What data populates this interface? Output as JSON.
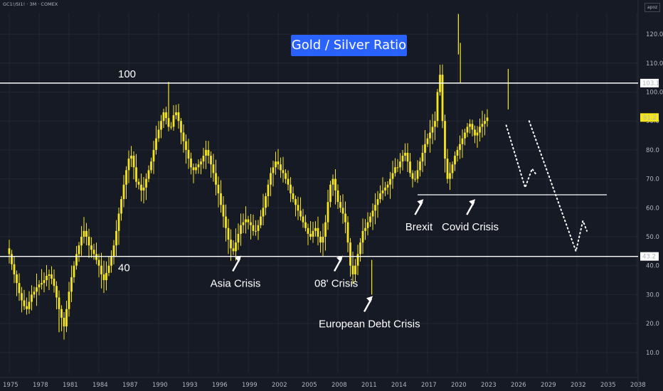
{
  "header": {
    "symbol": "GC1!/SI1! · 3M · COMEX",
    "corner_label": "apoz"
  },
  "colors": {
    "background": "#161a25",
    "candle": "#f5e51c",
    "level_line": "#ffffff",
    "price_label": "#f5e51c",
    "title_bg": "#2962ff",
    "grid": "#232734"
  },
  "chart_data": {
    "type": "candlestick",
    "title": "Gold / Silver Ratio",
    "x_ticks": [
      "1975",
      "1978",
      "1981",
      "1984",
      "1987",
      "1990",
      "1993",
      "1996",
      "1999",
      "2002",
      "2005",
      "2008",
      "2011",
      "2014",
      "2017",
      "2020",
      "2023",
      "2026",
      "2029",
      "2032",
      "2035",
      "2038"
    ],
    "y_ticks": [
      10,
      20,
      30,
      40,
      50,
      60,
      70,
      80,
      90,
      100,
      110,
      120
    ],
    "y_tick_labels": [
      "10.0",
      "20.0",
      "30.0",
      "40.0",
      "50.0",
      "60.0",
      "70.0",
      "80.0",
      "90.0",
      "100.0",
      "110.0",
      "120.0"
    ],
    "xlim": [
      1975,
      2038
    ],
    "ylim": [
      0,
      126
    ],
    "levels": [
      {
        "value": 103.1,
        "label": "100",
        "price_label": "103.1"
      },
      {
        "value": 43.2,
        "label": "40",
        "price_label": "43.2"
      }
    ],
    "support_line": {
      "value": 64.5,
      "x_start": 2016.0,
      "x_end": 2035.0
    },
    "current_price": {
      "value": 91.2,
      "label": "91.2"
    },
    "series": [
      {
        "x_start": 1975.0,
        "step_years": 0.25,
        "close": [
          44.0,
          40.5,
          37.0,
          34.0,
          30.5,
          28.0,
          26.0,
          25.0,
          27.5,
          30.0,
          31.0,
          32.5,
          33.5,
          34.0,
          35.0,
          36.5,
          37.0,
          35.5,
          33.0,
          29.0,
          25.0,
          22.0,
          19.0,
          25.0,
          31.0,
          36.0,
          40.0,
          44.0,
          47.0,
          50.0,
          52.0,
          50.0,
          47.0,
          45.5,
          44.0,
          42.0,
          40.0,
          37.0,
          35.0,
          37.5,
          40.0,
          43.0,
          47.0,
          52.0,
          58.0,
          63.0,
          68.0,
          73.0,
          77.0,
          78.0,
          74.0,
          69.0,
          68.0,
          66.0,
          67.0,
          70.0,
          73.0,
          76.0,
          80.0,
          84.0,
          87.0,
          90.0,
          93.0,
          91.0,
          88.0,
          88.0,
          92.0,
          93.0,
          90.0,
          86.0,
          83.0,
          80.0,
          77.0,
          74.0,
          73.0,
          74.0,
          75.0,
          76.0,
          78.0,
          80.0,
          78.0,
          75.0,
          72.0,
          68.0,
          65.0,
          61.0,
          57.0,
          53.0,
          49.0,
          46.0,
          45.0,
          48.0,
          51.0,
          54.0,
          55.0,
          56.0,
          55.0,
          54.0,
          52.0,
          52.0,
          54.0,
          57.0,
          60.0,
          64.0,
          68.0,
          72.0,
          74.0,
          76.0,
          75.0,
          73.0,
          72.0,
          70.0,
          68.0,
          65.0,
          63.0,
          61.0,
          59.0,
          57.0,
          55.0,
          53.0,
          51.0,
          50.0,
          52.0,
          53.0,
          50.0,
          48.0,
          50.0,
          55.0,
          62.0,
          68.0,
          70.0,
          66.0,
          62.0,
          60.0,
          58.0,
          55.0,
          48.0,
          40.0,
          37.0,
          40.0,
          44.0,
          48.0,
          52.0,
          53.0,
          55.0,
          57.0,
          59.0,
          61.0,
          63.0,
          65.0,
          66.0,
          67.0,
          68.0,
          70.0,
          72.0,
          74.0,
          74.0,
          76.0,
          78.0,
          79.0,
          76.0,
          72.0,
          70.0,
          70.0,
          73.0,
          76.0,
          79.0,
          82.0,
          84.0,
          86.0,
          88.0,
          90.0,
          100.0,
          106.0,
          90.0,
          77.0,
          70.0,
          72.0,
          75.0,
          78.0,
          80.0,
          82.0,
          84.0,
          86.0,
          88.0,
          89.0,
          87.0,
          85.0,
          86.0,
          88.0,
          89.0,
          90.0,
          91.2
        ]
      }
    ],
    "projection": [
      {
        "x": 2024.9,
        "y": 88.5
      },
      {
        "x": 2026.8,
        "y": 67.0
      },
      {
        "x": 2027.5,
        "y": 73.5
      },
      {
        "x": 2027.9,
        "y": 71.5
      },
      {
        "x": 2027.2,
        "y": 90.0
      },
      {
        "x": 2031.9,
        "y": 45.0
      },
      {
        "x": 2032.6,
        "y": 55.5
      },
      {
        "x": 2033.0,
        "y": 52.0
      }
    ],
    "annotations": [
      {
        "text": "Asia Crisis",
        "x": 1998.3,
        "y": 43.5
      },
      {
        "text": "08' Crisis",
        "x": 2008.5,
        "y": 43.5
      },
      {
        "text": "European Debt Crisis",
        "x": 2011.5,
        "y": 29.5
      },
      {
        "text": "Brexit",
        "x": 2016.6,
        "y": 63.0
      },
      {
        "text": "Covid Crisis",
        "x": 2021.8,
        "y": 63.0
      }
    ]
  }
}
